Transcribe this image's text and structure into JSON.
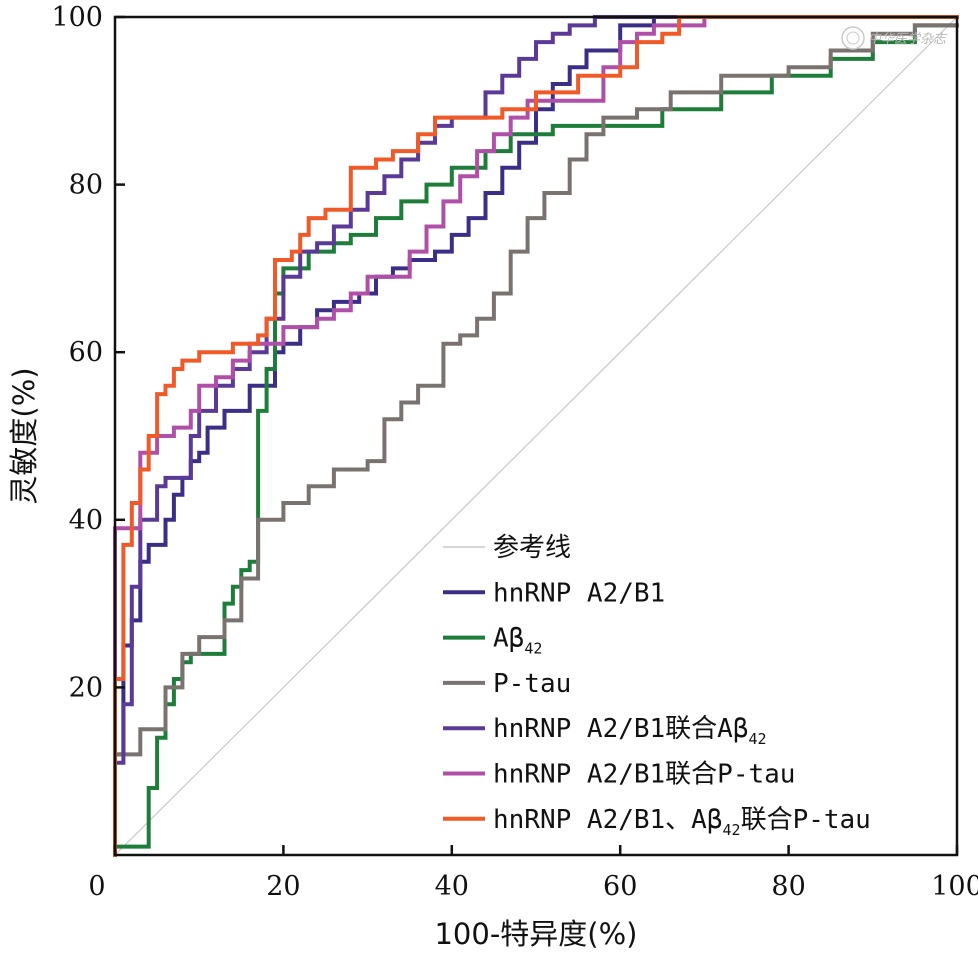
{
  "chart_data": {
    "type": "line",
    "title": "",
    "xlabel": "100-特异度(%)",
    "ylabel": "灵敏度(%)",
    "xlim": [
      0,
      100
    ],
    "ylim": [
      0,
      100
    ],
    "xticks": [
      0,
      20,
      40,
      60,
      80,
      100
    ],
    "yticks": [
      20,
      40,
      60,
      80,
      100
    ],
    "grid": false,
    "legend_position": "bottom-right",
    "watermark": "中华医学杂志",
    "reference_line": {
      "name": "参考线",
      "color": "#c8c8c8",
      "x": [
        0,
        100
      ],
      "y": [
        0,
        100
      ]
    },
    "series": [
      {
        "name": "hnRNP A2/B1",
        "sub": "",
        "tail": "",
        "color": "#3b2e86",
        "x": [
          0,
          0,
          1,
          1,
          2,
          2,
          3,
          3,
          4,
          4,
          6,
          6,
          7,
          7,
          8,
          8,
          9,
          9,
          10,
          10,
          11,
          11,
          13,
          13,
          14,
          14,
          16,
          16,
          19,
          19,
          20,
          20,
          22,
          22,
          24,
          24,
          26,
          26,
          29,
          29,
          31,
          31,
          33,
          33,
          35,
          35,
          38,
          38,
          40,
          40,
          42,
          42,
          44,
          44,
          46,
          46,
          48,
          48,
          50,
          50,
          52,
          52,
          54,
          54,
          56,
          56,
          60,
          60,
          64,
          64,
          100
        ],
        "y": [
          0,
          12,
          12,
          25,
          25,
          28,
          28,
          35,
          35,
          37,
          37,
          40,
          40,
          43,
          43,
          45,
          45,
          47,
          47,
          48,
          48,
          51,
          51,
          53,
          53,
          53,
          53,
          56,
          56,
          60,
          60,
          61,
          61,
          63,
          63,
          65,
          65,
          66,
          66,
          67,
          67,
          69,
          69,
          70,
          70,
          71,
          71,
          72,
          72,
          74,
          74,
          76,
          76,
          79,
          79,
          82,
          82,
          85,
          85,
          89,
          89,
          92,
          92,
          94,
          94,
          96,
          96,
          99,
          99,
          100,
          100
        ]
      },
      {
        "name": "A",
        "sub": "42",
        "tail": "",
        "color": "#1f7d3a",
        "x": [
          0,
          0,
          4,
          4,
          5,
          5,
          6,
          6,
          7,
          7,
          8,
          8,
          9,
          9,
          11,
          11,
          13,
          13,
          14,
          14,
          15,
          15,
          16,
          16,
          17,
          17,
          18,
          18,
          19,
          19,
          20,
          20,
          23,
          23,
          26,
          26,
          28,
          28,
          31,
          31,
          34,
          34,
          37,
          37,
          40,
          40,
          44,
          44,
          47,
          47,
          52,
          52,
          58,
          58,
          65,
          65,
          72,
          72,
          78,
          78,
          85,
          85,
          90,
          90,
          95,
          95,
          100
        ],
        "y": [
          0,
          1,
          1,
          8,
          8,
          14,
          14,
          18,
          18,
          21,
          21,
          23,
          23,
          24,
          24,
          24,
          24,
          30,
          30,
          32,
          32,
          34,
          34,
          35,
          35,
          53,
          53,
          58,
          58,
          67,
          67,
          70,
          70,
          72,
          72,
          73,
          73,
          74,
          74,
          76,
          76,
          78,
          78,
          80,
          80,
          82,
          82,
          84,
          84,
          86,
          86,
          87,
          87,
          87,
          87,
          89,
          89,
          91,
          91,
          93,
          93,
          95,
          95,
          97,
          97,
          99,
          99
        ]
      },
      {
        "name": "P-tau",
        "sub": "",
        "tail": "",
        "color": "#7a726f",
        "x": [
          0,
          0,
          3,
          3,
          6,
          6,
          8,
          8,
          10,
          10,
          13,
          13,
          15,
          15,
          17,
          17,
          20,
          20,
          23,
          23,
          26,
          26,
          30,
          30,
          32,
          32,
          34,
          34,
          36,
          36,
          39,
          39,
          41,
          41,
          43,
          43,
          45,
          45,
          47,
          47,
          49,
          49,
          51,
          51,
          54,
          54,
          56,
          56,
          58,
          58,
          62,
          62,
          66,
          66,
          72,
          72,
          80,
          80,
          85,
          85,
          90,
          90,
          95,
          95,
          100
        ],
        "y": [
          0,
          12,
          12,
          15,
          15,
          20,
          20,
          24,
          24,
          26,
          26,
          28,
          28,
          33,
          33,
          40,
          40,
          42,
          42,
          44,
          44,
          46,
          46,
          47,
          47,
          52,
          52,
          54,
          54,
          56,
          56,
          61,
          61,
          62,
          62,
          64,
          64,
          67,
          67,
          72,
          72,
          76,
          76,
          79,
          79,
          83,
          83,
          86,
          86,
          88,
          88,
          89,
          89,
          91,
          91,
          93,
          93,
          94,
          94,
          96,
          96,
          98,
          98,
          99,
          99
        ]
      },
      {
        "name": "hnRNP A2/B1联合A",
        "sub": "42",
        "tail": "",
        "color": "#5a3a96",
        "x": [
          0,
          0,
          1,
          1,
          2,
          2,
          3,
          3,
          5,
          5,
          6,
          6,
          9,
          9,
          10,
          10,
          12,
          12,
          14,
          14,
          16,
          16,
          18,
          18,
          20,
          20,
          22,
          22,
          24,
          24,
          26,
          26,
          28,
          28,
          30,
          30,
          32,
          32,
          34,
          34,
          36,
          36,
          38,
          38,
          40,
          40,
          44,
          44,
          46,
          46,
          48,
          48,
          50,
          50,
          52,
          52,
          54,
          54,
          57,
          57,
          100
        ],
        "y": [
          0,
          11,
          11,
          18,
          18,
          32,
          32,
          40,
          40,
          44,
          44,
          45,
          45,
          50,
          50,
          53,
          53,
          56,
          56,
          58,
          58,
          60,
          60,
          64,
          64,
          69,
          69,
          72,
          72,
          73,
          73,
          75,
          75,
          77,
          77,
          79,
          79,
          81,
          81,
          83,
          83,
          85,
          85,
          87,
          87,
          88,
          88,
          91,
          91,
          93,
          93,
          95,
          95,
          97,
          97,
          98,
          98,
          99,
          99,
          100,
          100
        ]
      },
      {
        "name": "hnRNP A2/B1联合P-tau",
        "sub": "",
        "tail": "",
        "color": "#b04fa8",
        "x": [
          0,
          0,
          3,
          3,
          4,
          4,
          5,
          5,
          7,
          7,
          9,
          9,
          10,
          10,
          12,
          12,
          14,
          14,
          16,
          16,
          20,
          20,
          24,
          24,
          26,
          26,
          28,
          28,
          30,
          30,
          35,
          35,
          37,
          37,
          39,
          39,
          41,
          41,
          43,
          43,
          45,
          45,
          47,
          47,
          49,
          49,
          52,
          52,
          58,
          58,
          60,
          60,
          62,
          62,
          64,
          64,
          70,
          70,
          100
        ],
        "y": [
          0,
          39,
          39,
          48,
          48,
          48,
          48,
          50,
          50,
          51,
          51,
          53,
          53,
          56,
          56,
          57,
          57,
          59,
          59,
          61,
          61,
          63,
          63,
          64,
          64,
          65,
          65,
          67,
          67,
          69,
          69,
          72,
          72,
          75,
          75,
          78,
          78,
          81,
          81,
          84,
          84,
          86,
          86,
          88,
          88,
          90,
          90,
          90,
          90,
          94,
          94,
          97,
          97,
          98,
          98,
          99,
          99,
          100,
          100
        ]
      },
      {
        "name": "hnRNP A2/B1、A",
        "sub": "42",
        "tail": "联合P-tau",
        "color": "#f05a28",
        "x": [
          0,
          0,
          1,
          1,
          2,
          2,
          3,
          3,
          4,
          4,
          5,
          5,
          6,
          6,
          7,
          7,
          8,
          8,
          10,
          10,
          12,
          12,
          14,
          14,
          17,
          17,
          18,
          18,
          19,
          19,
          21,
          21,
          22,
          22,
          23,
          23,
          25,
          25,
          28,
          28,
          31,
          31,
          33,
          33,
          36,
          36,
          38,
          38,
          42,
          42,
          46,
          46,
          50,
          50,
          55,
          55,
          60,
          60,
          62,
          62,
          65,
          65,
          67,
          67,
          100
        ],
        "y": [
          0,
          21,
          21,
          37,
          37,
          42,
          42,
          46,
          46,
          50,
          50,
          55,
          55,
          56,
          56,
          58,
          58,
          59,
          59,
          60,
          60,
          60,
          60,
          61,
          61,
          62,
          62,
          64,
          64,
          71,
          71,
          72,
          72,
          74,
          74,
          76,
          76,
          77,
          77,
          82,
          82,
          83,
          83,
          84,
          84,
          86,
          86,
          88,
          88,
          88,
          88,
          89,
          89,
          91,
          91,
          93,
          93,
          94,
          94,
          97,
          97,
          98,
          98,
          100,
          100
        ]
      }
    ]
  }
}
